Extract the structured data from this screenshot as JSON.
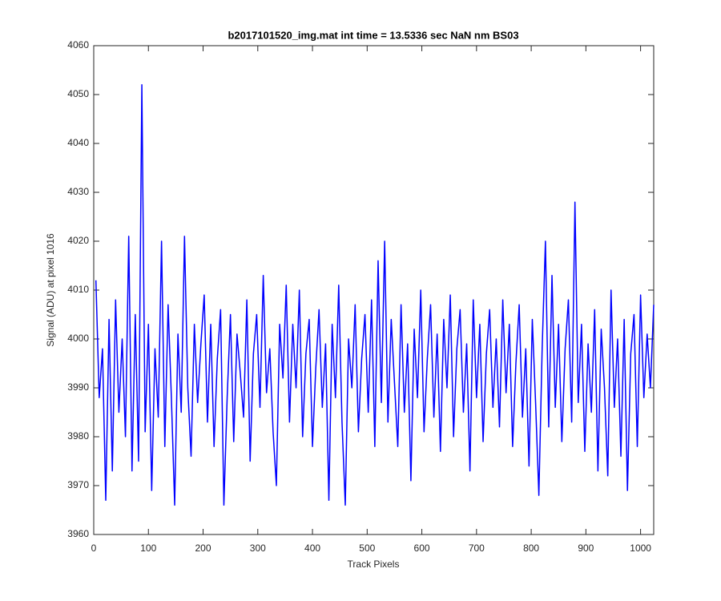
{
  "chart_data": {
    "type": "line",
    "title": "b2017101520_img.mat int time = 13.5336 sec  NaN nm BS03",
    "x_label": "Track Pixels",
    "y_label": "Signal (ADU) at pixel 1016",
    "xlim": [
      0,
      1024
    ],
    "ylim": [
      3960,
      4060
    ],
    "xticks": [
      0,
      100,
      200,
      300,
      400,
      500,
      600,
      700,
      800,
      900,
      1000
    ],
    "yticks": [
      3960,
      3970,
      3980,
      3990,
      4000,
      4010,
      4020,
      4030,
      4040,
      4050,
      4060
    ],
    "grid": false,
    "x": [
      4,
      10,
      16,
      22,
      28,
      34,
      40,
      46,
      52,
      58,
      64,
      70,
      76,
      82,
      88,
      94,
      100,
      106,
      112,
      118,
      124,
      130,
      136,
      142,
      148,
      154,
      160,
      166,
      172,
      178,
      184,
      190,
      196,
      202,
      208,
      214,
      220,
      226,
      232,
      238,
      244,
      250,
      256,
      262,
      268,
      274,
      280,
      286,
      292,
      298,
      304,
      310,
      316,
      322,
      328,
      334,
      340,
      346,
      352,
      358,
      364,
      370,
      376,
      382,
      388,
      394,
      400,
      406,
      412,
      418,
      424,
      430,
      436,
      442,
      448,
      454,
      460,
      466,
      472,
      478,
      484,
      490,
      496,
      502,
      508,
      514,
      520,
      526,
      532,
      538,
      544,
      550,
      556,
      562,
      568,
      574,
      580,
      586,
      592,
      598,
      604,
      610,
      616,
      622,
      628,
      634,
      640,
      646,
      652,
      658,
      664,
      670,
      676,
      682,
      688,
      694,
      700,
      706,
      712,
      718,
      724,
      730,
      736,
      742,
      748,
      754,
      760,
      766,
      772,
      778,
      784,
      790,
      796,
      802,
      808,
      814,
      820,
      826,
      832,
      838,
      844,
      850,
      856,
      862,
      868,
      874,
      880,
      886,
      892,
      898,
      904,
      910,
      916,
      922,
      928,
      934,
      940,
      946,
      952,
      958,
      964,
      970,
      976,
      982,
      988,
      994,
      1000,
      1006,
      1012,
      1018,
      1024
    ],
    "series": [
      {
        "color": "#0000ff",
        "values": [
          4012,
          3988,
          3998,
          3967,
          4004,
          3973,
          4008,
          3985,
          4000,
          3980,
          4021,
          3973,
          4005,
          3975,
          4052,
          3981,
          4003,
          3969,
          3998,
          3984,
          4020,
          3978,
          4007,
          3988,
          3966,
          4001,
          3985,
          4021,
          3990,
          3976,
          4003,
          3987,
          3999,
          4009,
          3983,
          4003,
          3978,
          3996,
          4006,
          3966,
          3988,
          4005,
          3979,
          4001,
          3993,
          3984,
          4008,
          3975,
          3997,
          4005,
          3986,
          4013,
          3989,
          3998,
          3981,
          3970,
          4003,
          3992,
          4011,
          3983,
          4003,
          3990,
          4010,
          3980,
          3997,
          4004,
          3978,
          3994,
          4006,
          3986,
          3999,
          3967,
          4003,
          3988,
          4011,
          3983,
          3966,
          4000,
          3990,
          4007,
          3981,
          3996,
          4005,
          3985,
          4008,
          3978,
          4016,
          3987,
          4020,
          3983,
          4004,
          3991,
          3978,
          4007,
          3985,
          3999,
          3971,
          4002,
          3988,
          4010,
          3981,
          3996,
          4007,
          3984,
          4001,
          3977,
          4004,
          3990,
          4009,
          3980,
          3998,
          4006,
          3985,
          3999,
          3973,
          4008,
          3988,
          4003,
          3979,
          3997,
          4006,
          3986,
          4000,
          3982,
          4008,
          3989,
          4003,
          3978,
          3995,
          4007,
          3984,
          3998,
          3974,
          4004,
          3987,
          3968,
          3998,
          4020,
          3982,
          4013,
          3986,
          4003,
          3979,
          3998,
          4008,
          3983,
          4028,
          3987,
          4003,
          3977,
          3999,
          3985,
          4006,
          3973,
          4002,
          3990,
          3972,
          4010,
          3986,
          4000,
          3976,
          4004,
          3969,
          3997,
          4005,
          3978,
          4009,
          3988,
          4001,
          3990,
          4007
        ]
      }
    ]
  }
}
